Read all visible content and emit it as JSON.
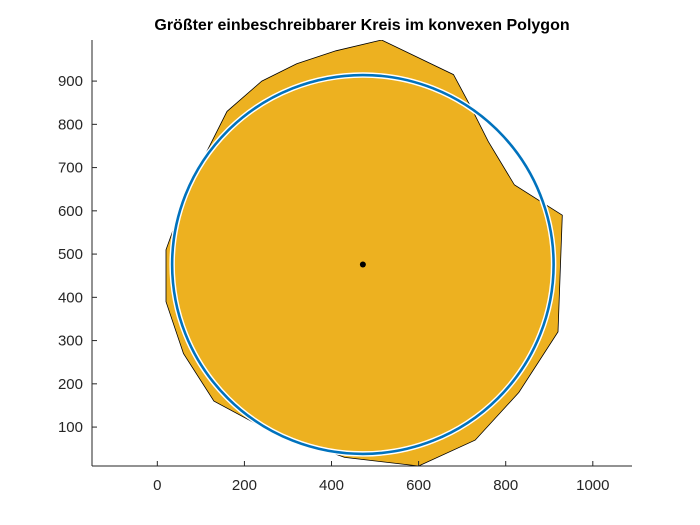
{
  "chart_data": {
    "type": "scatter",
    "title": "Größter einbeschreibbarer Kreis im konvexen Polygon",
    "xlabel": "",
    "ylabel": "",
    "xlim": [
      -150,
      1090
    ],
    "ylim": [
      10,
      995
    ],
    "xticks": [
      0,
      200,
      400,
      600,
      800,
      1000
    ],
    "yticks": [
      100,
      200,
      300,
      400,
      500,
      600,
      700,
      800,
      900
    ],
    "grid": false,
    "legend": false,
    "polygon": {
      "fill_color": "#EDB120",
      "edge_color": "#000000",
      "vertices": [
        [
          515,
          995
        ],
        [
          680,
          915
        ],
        [
          720,
          840
        ],
        [
          760,
          760
        ],
        [
          820,
          660
        ],
        [
          930,
          590
        ],
        [
          920,
          320
        ],
        [
          830,
          180
        ],
        [
          730,
          70
        ],
        [
          600,
          10
        ],
        [
          430,
          30
        ],
        [
          250,
          95
        ],
        [
          130,
          160
        ],
        [
          60,
          270
        ],
        [
          20,
          390
        ],
        [
          20,
          510
        ],
        [
          70,
          650
        ],
        [
          160,
          830
        ],
        [
          240,
          900
        ],
        [
          320,
          940
        ],
        [
          410,
          970
        ]
      ]
    },
    "inscribed_circle": {
      "center": [
        472,
        476
      ],
      "radius": 438,
      "color": "#0072BD"
    },
    "center_point": {
      "x": 472,
      "y": 476,
      "color": "#000000"
    }
  }
}
